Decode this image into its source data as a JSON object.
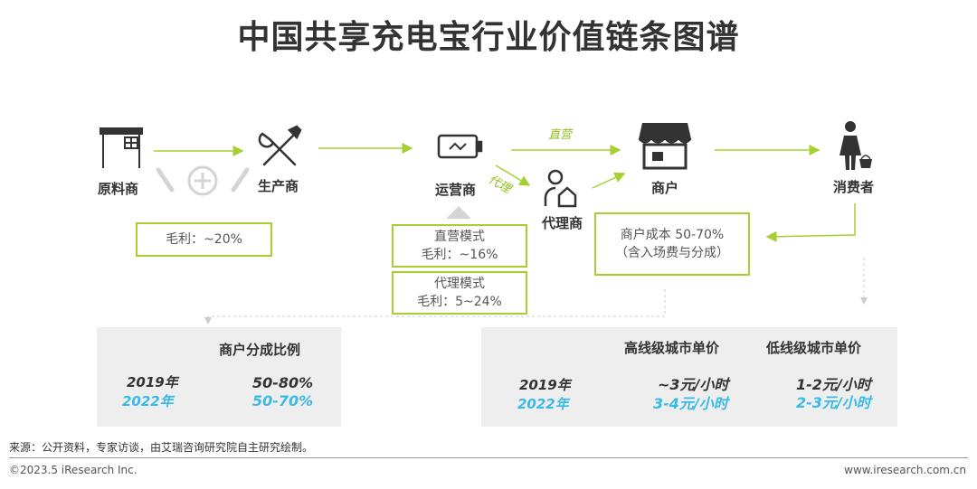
{
  "title": "中国共享充电宝行业价值链条图谱",
  "nodes": {
    "raw_material": "原料商",
    "manufacturer": "生产商",
    "operator": "运营商",
    "agent": "代理商",
    "merchant": "商户",
    "consumer": "消费者"
  },
  "arrow_labels": {
    "direct": "直营",
    "agent": "代理"
  },
  "boxes": {
    "raw_margin": "毛利：~20%",
    "direct_mode_title": "直营模式",
    "direct_mode_margin": "毛利：~16%",
    "agent_mode_title": "代理模式",
    "agent_mode_margin": "毛利：5~24%",
    "merchant_cost_line1": "商户成本 50-70%",
    "merchant_cost_line2": "（含入场费与分成）"
  },
  "left_panel": {
    "header": "商户分成比例",
    "rows": [
      {
        "year": "2019年",
        "value": "50-80%"
      },
      {
        "year": "2022年",
        "value": "50-70%"
      }
    ]
  },
  "right_panel": {
    "header_high": "高线级城市单价",
    "header_low": "低线级城市单价",
    "rows": [
      {
        "year": "2019年",
        "high": "~3元/小时",
        "low": "1-2元/小时"
      },
      {
        "year": "2022年",
        "high": "3-4元/小时",
        "low": "2-3元/小时"
      }
    ]
  },
  "colors": {
    "accent": "#a6cf2f",
    "blue": "#39b9e6",
    "panel": "#eeeeee"
  },
  "footer": {
    "source": "来源：公开资料，专家访谈，由艾瑞咨询研究院自主研究绘制。",
    "copyright": "©2023.5 iResearch Inc.",
    "website": "www.iresearch.com.cn"
  }
}
